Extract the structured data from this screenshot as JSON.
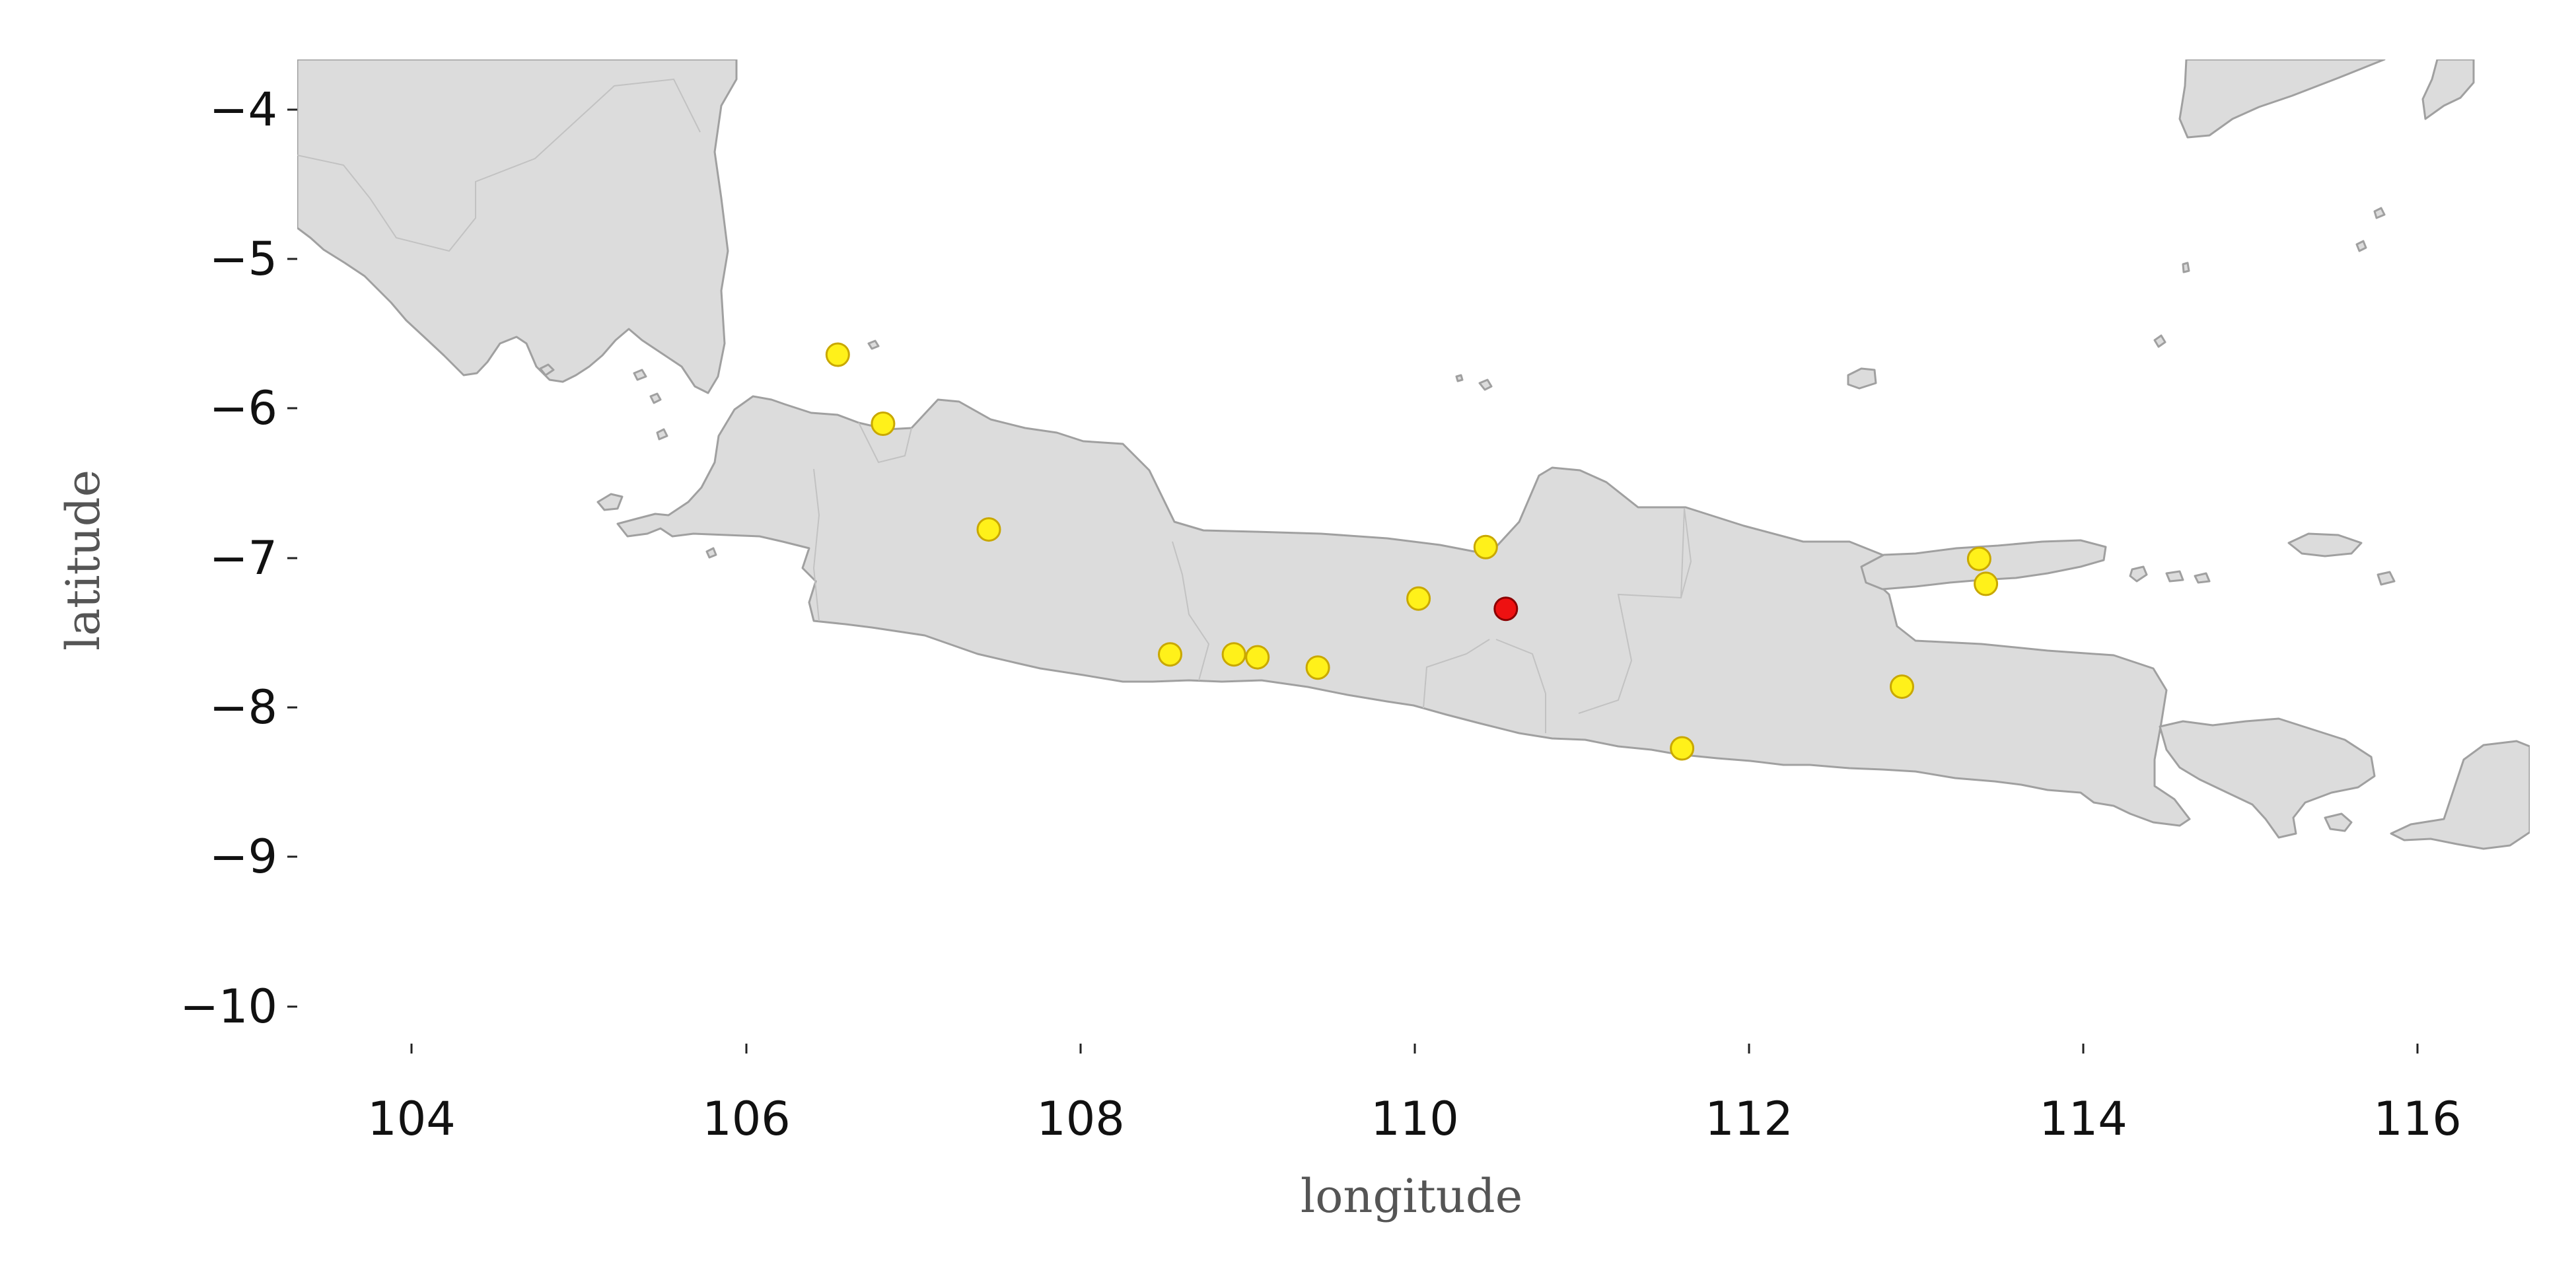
{
  "chart_data": {
    "type": "scatter",
    "title": "",
    "xlabel": "longitude",
    "ylabel": "latitude",
    "xlim": [
      103.35,
      116.65
    ],
    "ylim": [
      -10.35,
      -3.65
    ],
    "xticks": [
      "104",
      "106",
      "108",
      "110",
      "112",
      "114",
      "116"
    ],
    "yticks": [
      "−4",
      "−5",
      "−6",
      "−7",
      "−8",
      "−9",
      "−10"
    ],
    "grid": false,
    "colors": {
      "land": "#dcdcdc",
      "coast": "#a0a0a0",
      "point": "#fff11a",
      "point_edge": "#c9a800",
      "highlight": "#ee1111",
      "highlight_edge": "#8a0000"
    },
    "points": [
      {
        "x": 106.57,
        "y": -5.66
      },
      {
        "x": 106.84,
        "y": -6.13
      },
      {
        "x": 107.47,
        "y": -6.85
      },
      {
        "x": 108.55,
        "y": -7.7
      },
      {
        "x": 108.93,
        "y": -7.7
      },
      {
        "x": 109.07,
        "y": -7.72
      },
      {
        "x": 109.43,
        "y": -7.79
      },
      {
        "x": 110.03,
        "y": -7.32
      },
      {
        "x": 110.43,
        "y": -6.97
      },
      {
        "x": 111.6,
        "y": -8.34
      },
      {
        "x": 112.91,
        "y": -7.92
      },
      {
        "x": 113.37,
        "y": -7.05
      },
      {
        "x": 113.41,
        "y": -7.22
      }
    ],
    "highlight": [
      {
        "x": 110.55,
        "y": -7.39
      }
    ]
  }
}
